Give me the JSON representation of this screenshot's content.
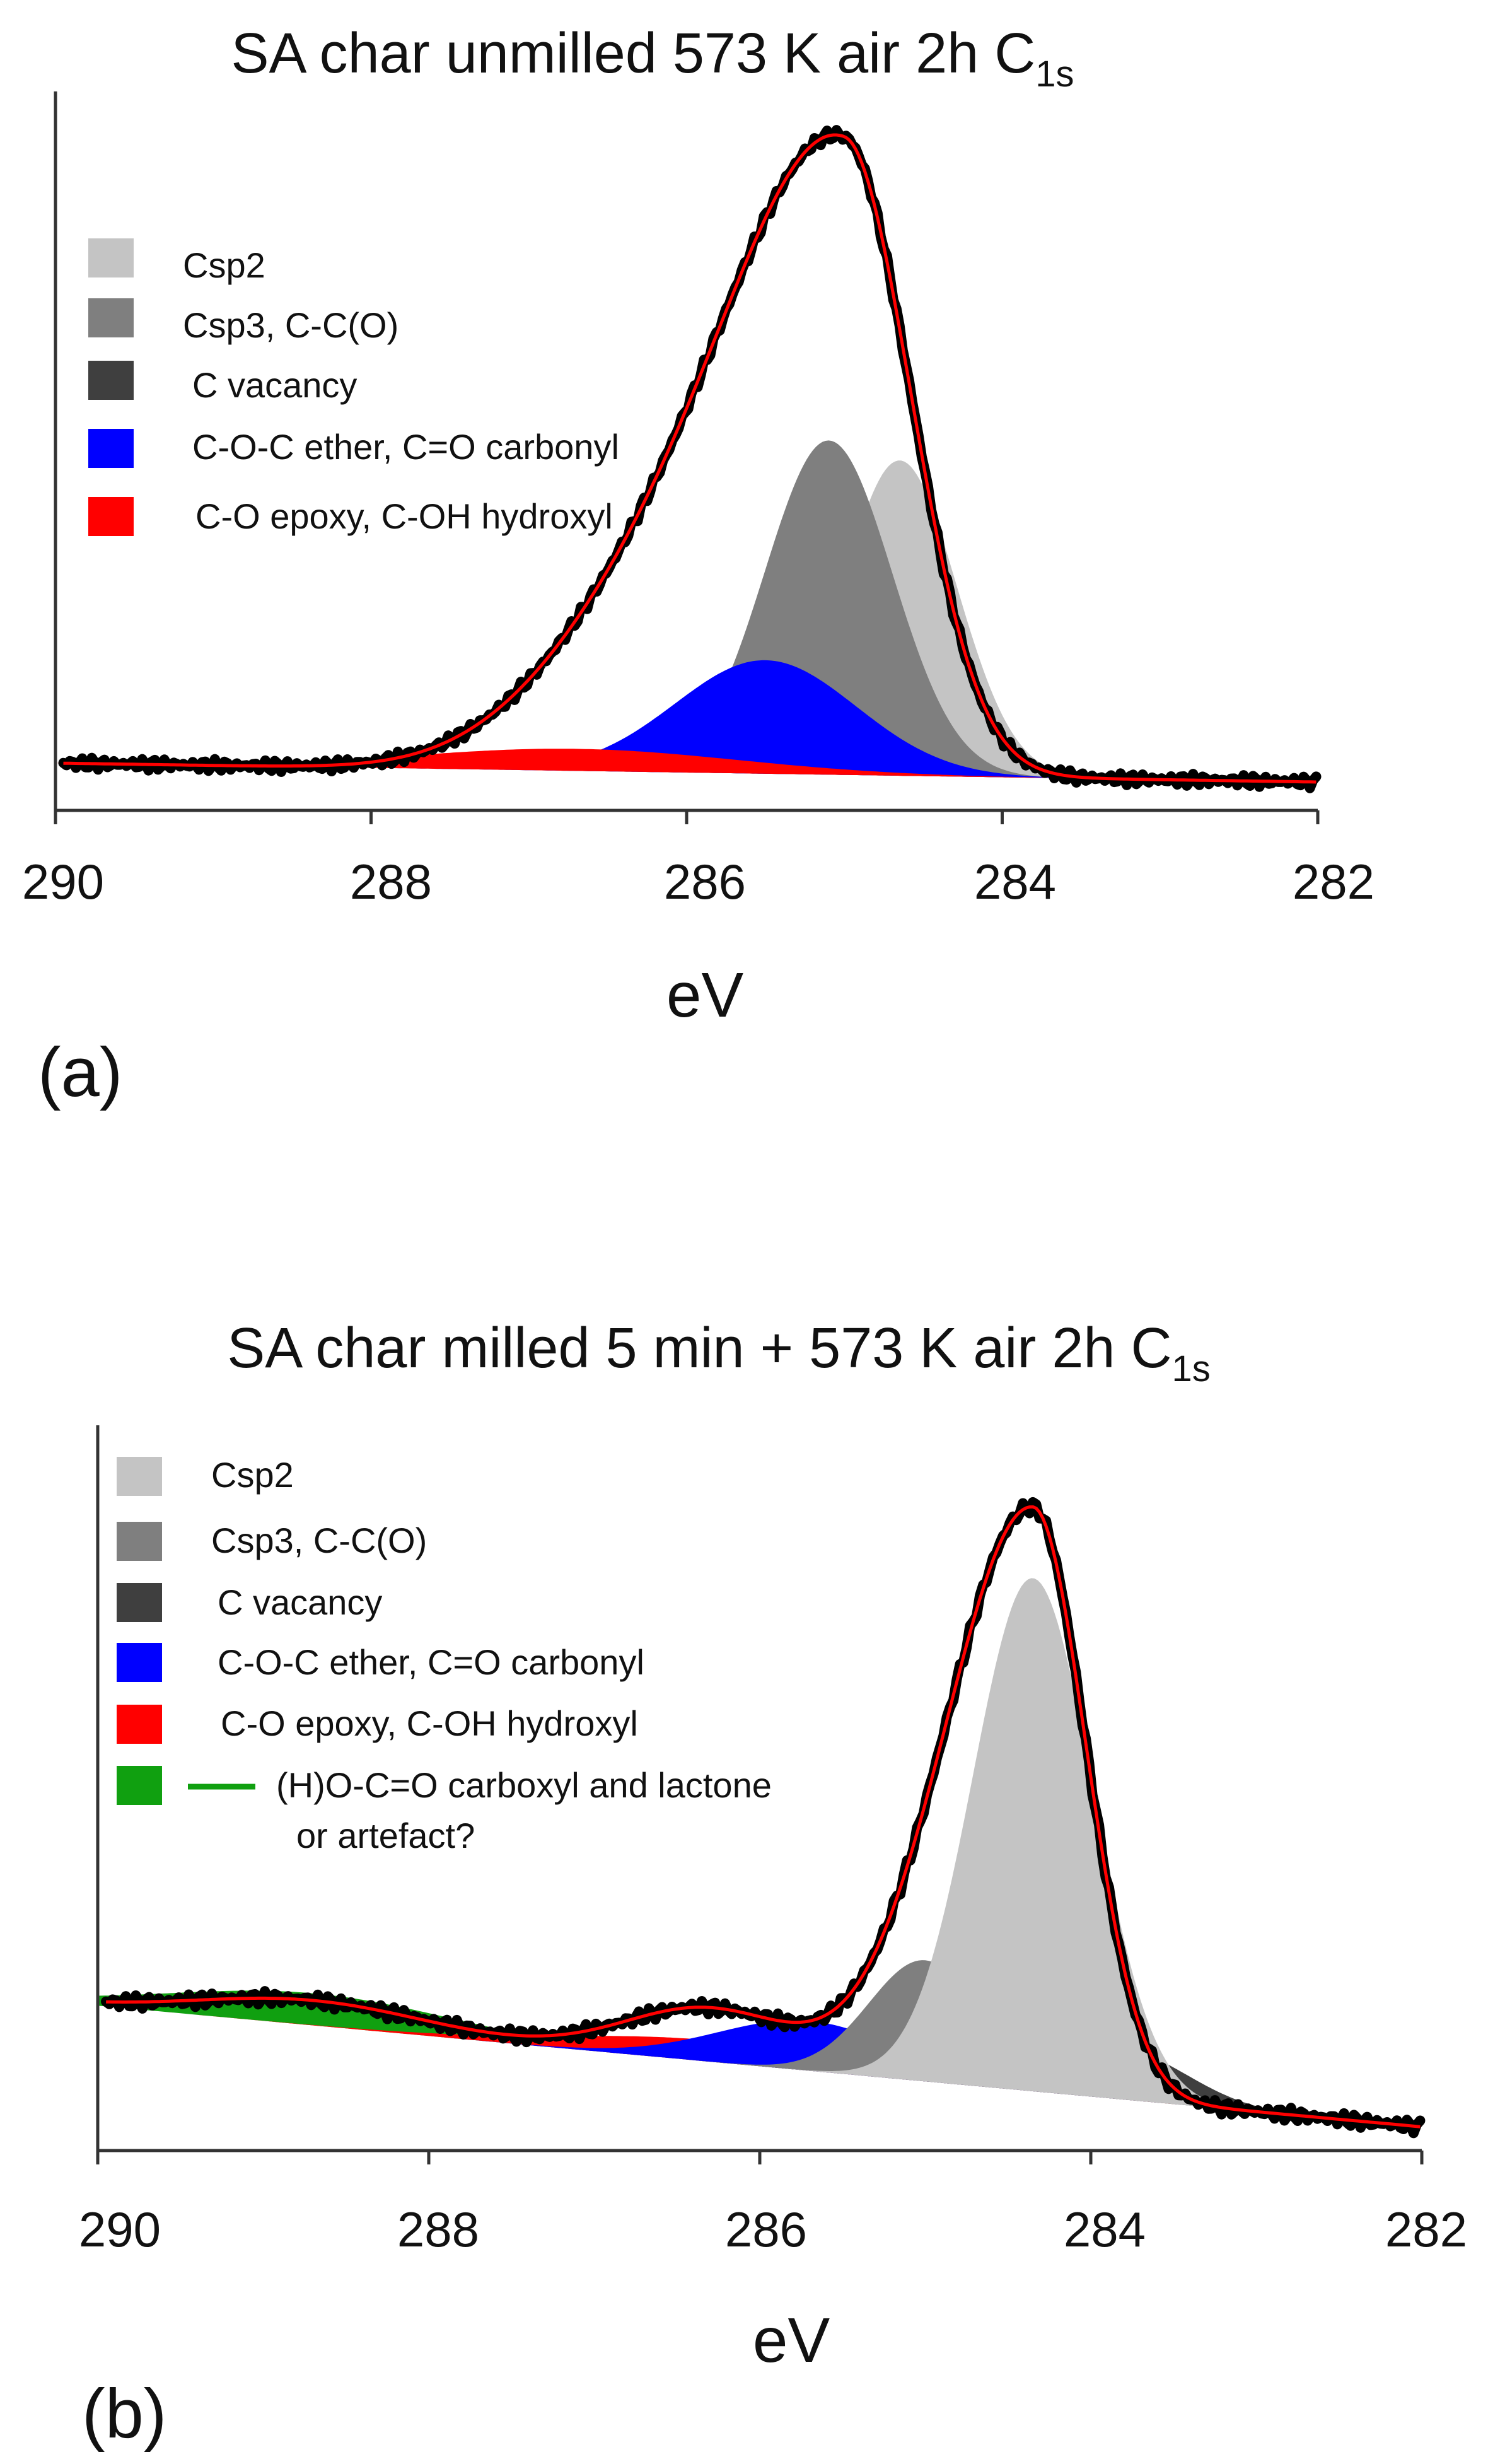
{
  "chart_data": [
    {
      "type": "area",
      "panel": "(a)",
      "title": "SA char unmilled 573 K air 2h  C",
      "title_sub": "1s",
      "xlabel": "eV",
      "ylabel": "",
      "xlim": [
        290,
        282
      ],
      "ylim": [
        0,
        1
      ],
      "x_reversed": true,
      "xticks": [
        "290",
        "288",
        "286",
        "284",
        "282"
      ],
      "legend_position": "top-left",
      "legend": [
        {
          "label": "Csp2",
          "color": "#c4c4c4"
        },
        {
          "label": "Csp3, C-C(O)",
          "color": "#7f7f7f"
        },
        {
          "label": "C vacancy",
          "color": "#3f3f3f"
        },
        {
          "label": "C-O-C ether, C=O carbonyl",
          "color": "#0000ff"
        },
        {
          "label": "C-O epoxy, C-OH hydroxyl",
          "color": "#ff0000"
        }
      ],
      "baseline": {
        "start": 0.03,
        "end": 0.0
      },
      "components": [
        {
          "name": "Csp2",
          "center": 284.65,
          "amp": 0.5,
          "fwhm": 0.85,
          "color": "#c4c4c4"
        },
        {
          "name": "Csp3, C-C(O)",
          "center": 285.1,
          "amp": 0.53,
          "fwhm": 0.95,
          "color": "#7f7f7f"
        },
        {
          "name": "C-O-C ether, C=O carbonyl",
          "center": 285.5,
          "amp": 0.18,
          "fwhm": 1.35,
          "color": "#0000ff"
        },
        {
          "name": "C-O epoxy, C-OH hydroxyl",
          "center": 286.7,
          "amp": 0.035,
          "fwhm": 2.4,
          "color": "#ff0000"
        }
      ],
      "envelope": {
        "center": 285.0,
        "amp": 0.98,
        "wl": 1.75,
        "wr": 1.0,
        "tail_amp": 0.2,
        "tail_center": 286.3,
        "tail_width": 1.6,
        "color": "#ff0000"
      }
    },
    {
      "type": "area",
      "panel": "(b)",
      "title": "SA char milled 5 min + 573 K air 2h  C",
      "title_sub": "1s",
      "xlabel": "eV",
      "ylabel": "",
      "xlim": [
        290,
        282
      ],
      "ylim": [
        0,
        1
      ],
      "x_reversed": true,
      "xticks": [
        "290",
        "288",
        "286",
        "284",
        "282"
      ],
      "legend_position": "top-left",
      "legend": [
        {
          "label": "Csp2",
          "color": "#c4c4c4"
        },
        {
          "label": "Csp3, C-C(O)",
          "color": "#7f7f7f"
        },
        {
          "label": "C vacancy",
          "color": "#3f3f3f"
        },
        {
          "label": "C-O-C ether, C=O carbonyl",
          "color": "#0000ff"
        },
        {
          "label": "C-O epoxy, C-OH hydroxyl",
          "color": "#ff0000"
        },
        {
          "label": "(H)O-C=O carboxyl and lactone",
          "label2": "or artefact?",
          "color": "#10a010"
        }
      ],
      "baseline": {
        "start": 0.19,
        "end": 0.02
      },
      "components": [
        {
          "name": "(H)O-C=O carboxyl and lactone",
          "center": 288.7,
          "amp": 0.045,
          "fwhm": 2.0,
          "color": "#10a010"
        },
        {
          "name": "C-O epoxy, C-OH hydroxyl",
          "center": 286.3,
          "amp": 0.03,
          "fwhm": 2.0,
          "color": "#ff0000"
        },
        {
          "name": "C-O-C ether, C=O carbonyl",
          "center": 285.7,
          "amp": 0.07,
          "fwhm": 1.3,
          "color": "#0000ff"
        },
        {
          "name": "C vacancy",
          "center": 283.8,
          "amp": 0.07,
          "fwhm": 0.9,
          "color": "#3f3f3f"
        },
        {
          "name": "Csp3, C-C(O)",
          "center": 285.0,
          "amp": 0.17,
          "fwhm": 0.8,
          "color": "#7f7f7f"
        },
        {
          "name": "Csp2",
          "center": 284.35,
          "amp": 0.72,
          "fwhm": 0.85,
          "color": "#c4c4c4"
        }
      ],
      "envelope": {
        "center": 284.35,
        "amp": 0.82,
        "wl": 1.25,
        "wr": 0.75,
        "tail_amp": 0.075,
        "tail_center": 286.3,
        "tail_width": 1.2,
        "bump_amp": 0.035,
        "bump_center": 288.7,
        "bump_width": 1.6,
        "color": "#ff0000"
      }
    }
  ],
  "panel_labels": {
    "a": "(a)",
    "b": "(b)"
  },
  "colors": {
    "raw_data": "#000000",
    "axis": "#333333",
    "green_line": "#10a010"
  }
}
